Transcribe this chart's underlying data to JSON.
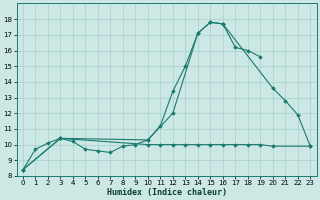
{
  "xlabel": "Humidex (Indice chaleur)",
  "xlim": [
    -0.5,
    23.5
  ],
  "ylim": [
    8,
    19
  ],
  "yticks": [
    8,
    9,
    10,
    11,
    12,
    13,
    14,
    15,
    16,
    17,
    18
  ],
  "xticks": [
    0,
    1,
    2,
    3,
    4,
    5,
    6,
    7,
    8,
    9,
    10,
    11,
    12,
    13,
    14,
    15,
    16,
    17,
    18,
    19,
    20,
    21,
    22,
    23
  ],
  "bg_color": "#cce8e5",
  "grid_color": "#aacfcc",
  "line_color": "#1a7a6e",
  "line1": {
    "x": [
      0,
      1,
      2,
      3,
      4,
      5,
      6,
      7,
      8,
      9,
      10,
      11,
      12,
      13,
      14,
      15,
      16,
      17,
      18,
      19
    ],
    "y": [
      8.4,
      9.7,
      10.1,
      10.4,
      10.2,
      9.7,
      9.6,
      9.5,
      9.9,
      10.0,
      10.3,
      11.2,
      13.4,
      15.0,
      17.1,
      17.8,
      17.7,
      16.2,
      16.0,
      15.6
    ]
  },
  "line2": {
    "x": [
      0,
      3,
      10,
      12,
      14,
      15,
      16,
      20,
      21,
      22,
      23
    ],
    "y": [
      8.4,
      10.4,
      10.3,
      12.0,
      17.1,
      17.8,
      17.7,
      13.6,
      12.8,
      11.9,
      9.9
    ]
  },
  "line3": {
    "x": [
      0,
      3,
      10,
      11,
      12,
      13,
      14,
      15,
      16,
      17,
      18,
      19,
      20,
      23
    ],
    "y": [
      8.4,
      10.4,
      10.0,
      10.0,
      10.0,
      10.0,
      10.0,
      10.0,
      10.0,
      10.0,
      10.0,
      10.0,
      9.9,
      9.9
    ]
  }
}
